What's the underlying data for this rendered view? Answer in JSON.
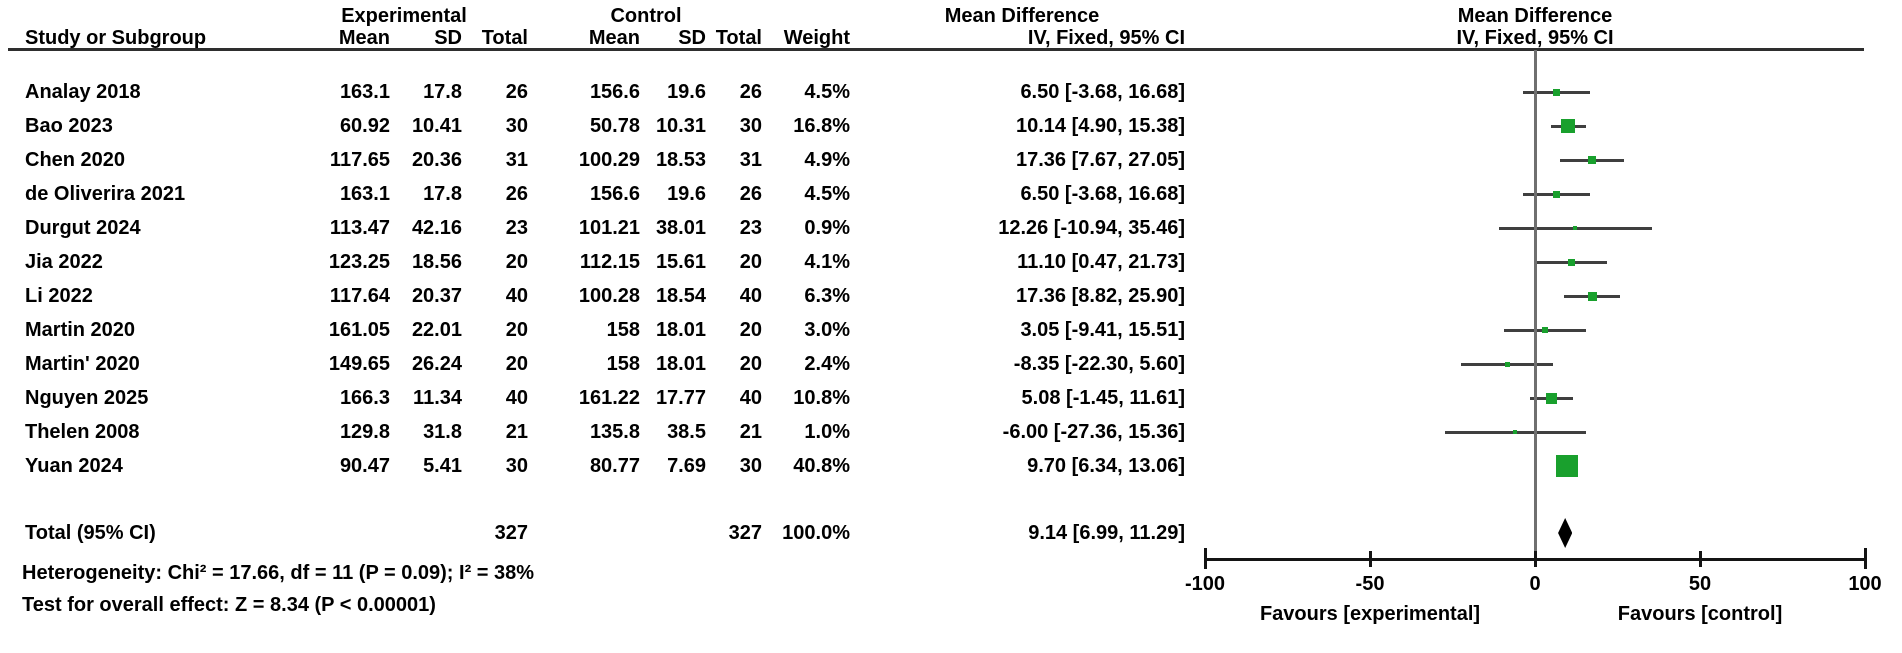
{
  "header": {
    "experimental": "Experimental",
    "control": "Control",
    "mean_difference": "Mean Difference",
    "method": "IV, Fixed, 95% CI",
    "study": "Study or Subgroup",
    "mean": "Mean",
    "sd": "SD",
    "total": "Total",
    "weight": "Weight"
  },
  "totals": {
    "label": "Total (95% CI)",
    "exp_total": "327",
    "ctl_total": "327",
    "weight": "100.0%",
    "ci_label": "9.14 [6.99, 11.29]",
    "md": 9.14,
    "ci_low": 6.99,
    "ci_high": 11.29
  },
  "footer": {
    "heterogeneity": "Heterogeneity: Chi² = 17.66, df = 11 (P = 0.09); I² = 38%",
    "overall_effect": "Test for overall effect: Z = 8.34 (P < 0.00001)"
  },
  "colors": {
    "marker_green": "#19A02D",
    "ci_line": "#3F3F3F",
    "zero_line": "#6F6F6F",
    "axis": "#141414",
    "text": "#000000"
  },
  "chart_data": {
    "type": "forest",
    "effect_measure": "Mean Difference",
    "model": "IV, Fixed, 95% CI",
    "axis": {
      "min": -100,
      "max": 100,
      "ticks": [
        -100,
        -50,
        0,
        50,
        100
      ],
      "left_label": "Favours [experimental]",
      "right_label": "Favours [control]"
    },
    "studies": [
      {
        "name": "Analay 2018",
        "exp_mean": "163.1",
        "exp_sd": "17.8",
        "exp_total": "26",
        "ctl_mean": "156.6",
        "ctl_sd": "19.6",
        "ctl_total": "26",
        "weight": "4.5%",
        "ci_label": "6.50 [-3.68, 16.68]",
        "md": 6.5,
        "ci_low": -3.68,
        "ci_high": 16.68
      },
      {
        "name": "Bao 2023",
        "exp_mean": "60.92",
        "exp_sd": "10.41",
        "exp_total": "30",
        "ctl_mean": "50.78",
        "ctl_sd": "10.31",
        "ctl_total": "30",
        "weight": "16.8%",
        "ci_label": "10.14 [4.90, 15.38]",
        "md": 10.14,
        "ci_low": 4.9,
        "ci_high": 15.38
      },
      {
        "name": "Chen 2020",
        "exp_mean": "117.65",
        "exp_sd": "20.36",
        "exp_total": "31",
        "ctl_mean": "100.29",
        "ctl_sd": "18.53",
        "ctl_total": "31",
        "weight": "4.9%",
        "ci_label": "17.36 [7.67, 27.05]",
        "md": 17.36,
        "ci_low": 7.67,
        "ci_high": 27.05
      },
      {
        "name": "de Oliverira 2021",
        "exp_mean": "163.1",
        "exp_sd": "17.8",
        "exp_total": "26",
        "ctl_mean": "156.6",
        "ctl_sd": "19.6",
        "ctl_total": "26",
        "weight": "4.5%",
        "ci_label": "6.50 [-3.68, 16.68]",
        "md": 6.5,
        "ci_low": -3.68,
        "ci_high": 16.68
      },
      {
        "name": "Durgut 2024",
        "exp_mean": "113.47",
        "exp_sd": "42.16",
        "exp_total": "23",
        "ctl_mean": "101.21",
        "ctl_sd": "38.01",
        "ctl_total": "23",
        "weight": "0.9%",
        "ci_label": "12.26 [-10.94, 35.46]",
        "md": 12.26,
        "ci_low": -10.94,
        "ci_high": 35.46
      },
      {
        "name": "Jia 2022",
        "exp_mean": "123.25",
        "exp_sd": "18.56",
        "exp_total": "20",
        "ctl_mean": "112.15",
        "ctl_sd": "15.61",
        "ctl_total": "20",
        "weight": "4.1%",
        "ci_label": "11.10 [0.47, 21.73]",
        "md": 11.1,
        "ci_low": 0.47,
        "ci_high": 21.73
      },
      {
        "name": "Li 2022",
        "exp_mean": "117.64",
        "exp_sd": "20.37",
        "exp_total": "40",
        "ctl_mean": "100.28",
        "ctl_sd": "18.54",
        "ctl_total": "40",
        "weight": "6.3%",
        "ci_label": "17.36 [8.82, 25.90]",
        "md": 17.36,
        "ci_low": 8.82,
        "ci_high": 25.9
      },
      {
        "name": "Martin 2020",
        "exp_mean": "161.05",
        "exp_sd": "22.01",
        "exp_total": "20",
        "ctl_mean": "158",
        "ctl_sd": "18.01",
        "ctl_total": "20",
        "weight": "3.0%",
        "ci_label": "3.05 [-9.41, 15.51]",
        "md": 3.05,
        "ci_low": -9.41,
        "ci_high": 15.51
      },
      {
        "name": "Martin' 2020",
        "exp_mean": "149.65",
        "exp_sd": "26.24",
        "exp_total": "20",
        "ctl_mean": "158",
        "ctl_sd": "18.01",
        "ctl_total": "20",
        "weight": "2.4%",
        "ci_label": "-8.35 [-22.30, 5.60]",
        "md": -8.35,
        "ci_low": -22.3,
        "ci_high": 5.6
      },
      {
        "name": "Nguyen 2025",
        "exp_mean": "166.3",
        "exp_sd": "11.34",
        "exp_total": "40",
        "ctl_mean": "161.22",
        "ctl_sd": "17.77",
        "ctl_total": "40",
        "weight": "10.8%",
        "ci_label": "5.08 [-1.45, 11.61]",
        "md": 5.08,
        "ci_low": -1.45,
        "ci_high": 11.61
      },
      {
        "name": "Thelen 2008",
        "exp_mean": "129.8",
        "exp_sd": "31.8",
        "exp_total": "21",
        "ctl_mean": "135.8",
        "ctl_sd": "38.5",
        "ctl_total": "21",
        "weight": "1.0%",
        "ci_label": "-6.00 [-27.36, 15.36]",
        "md": -6.0,
        "ci_low": -27.36,
        "ci_high": 15.36
      },
      {
        "name": "Yuan 2024",
        "exp_mean": "90.47",
        "exp_sd": "5.41",
        "exp_total": "30",
        "ctl_mean": "80.77",
        "ctl_sd": "7.69",
        "ctl_total": "30",
        "weight": "40.8%",
        "ci_label": "9.70 [6.34, 13.06]",
        "md": 9.7,
        "ci_low": 6.34,
        "ci_high": 13.06
      }
    ],
    "total_row": {
      "label": "Total (95% CI)",
      "md": 9.14,
      "ci_low": 6.99,
      "ci_high": 11.29
    }
  }
}
